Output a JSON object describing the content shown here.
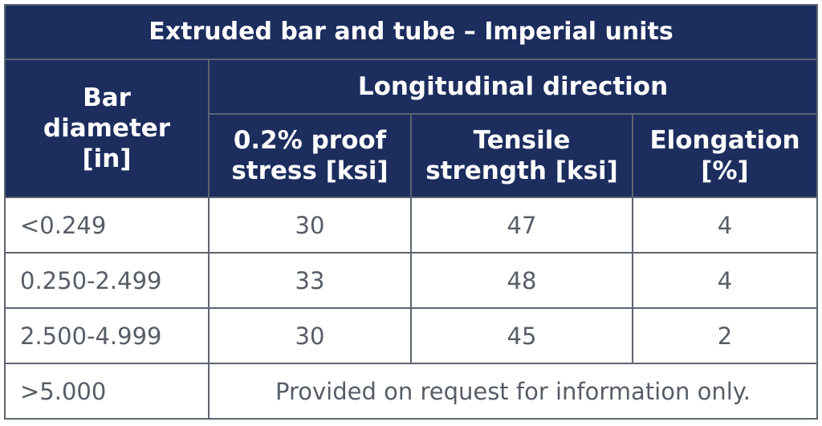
{
  "table": {
    "title": "Extruded bar and tube – Imperial units",
    "col_bar": [
      "Bar",
      "diameter",
      "[in]"
    ],
    "group_header": "Longitudinal direction",
    "col_proof": [
      "0.2% proof",
      "stress [ksi]"
    ],
    "col_tensile": [
      "Tensile",
      "strength [ksi]"
    ],
    "col_elong": [
      "Elongation",
      "[%]"
    ],
    "rows": [
      {
        "diameter": "<0.249",
        "proof": "30",
        "tensile": "47",
        "elongation": "4"
      },
      {
        "diameter": "0.250-2.499",
        "proof": "33",
        "tensile": "48",
        "elongation": "4"
      },
      {
        "diameter": "2.500-4.999",
        "proof": "30",
        "tensile": "45",
        "elongation": "2"
      }
    ],
    "last_row": {
      "diameter": ">5.000",
      "note": "Provided on request for information only."
    }
  },
  "colors": {
    "header_bg": "#1c2d5e",
    "header_text": "#ffffff",
    "body_text": "#575d66",
    "border": "#5d6470"
  }
}
